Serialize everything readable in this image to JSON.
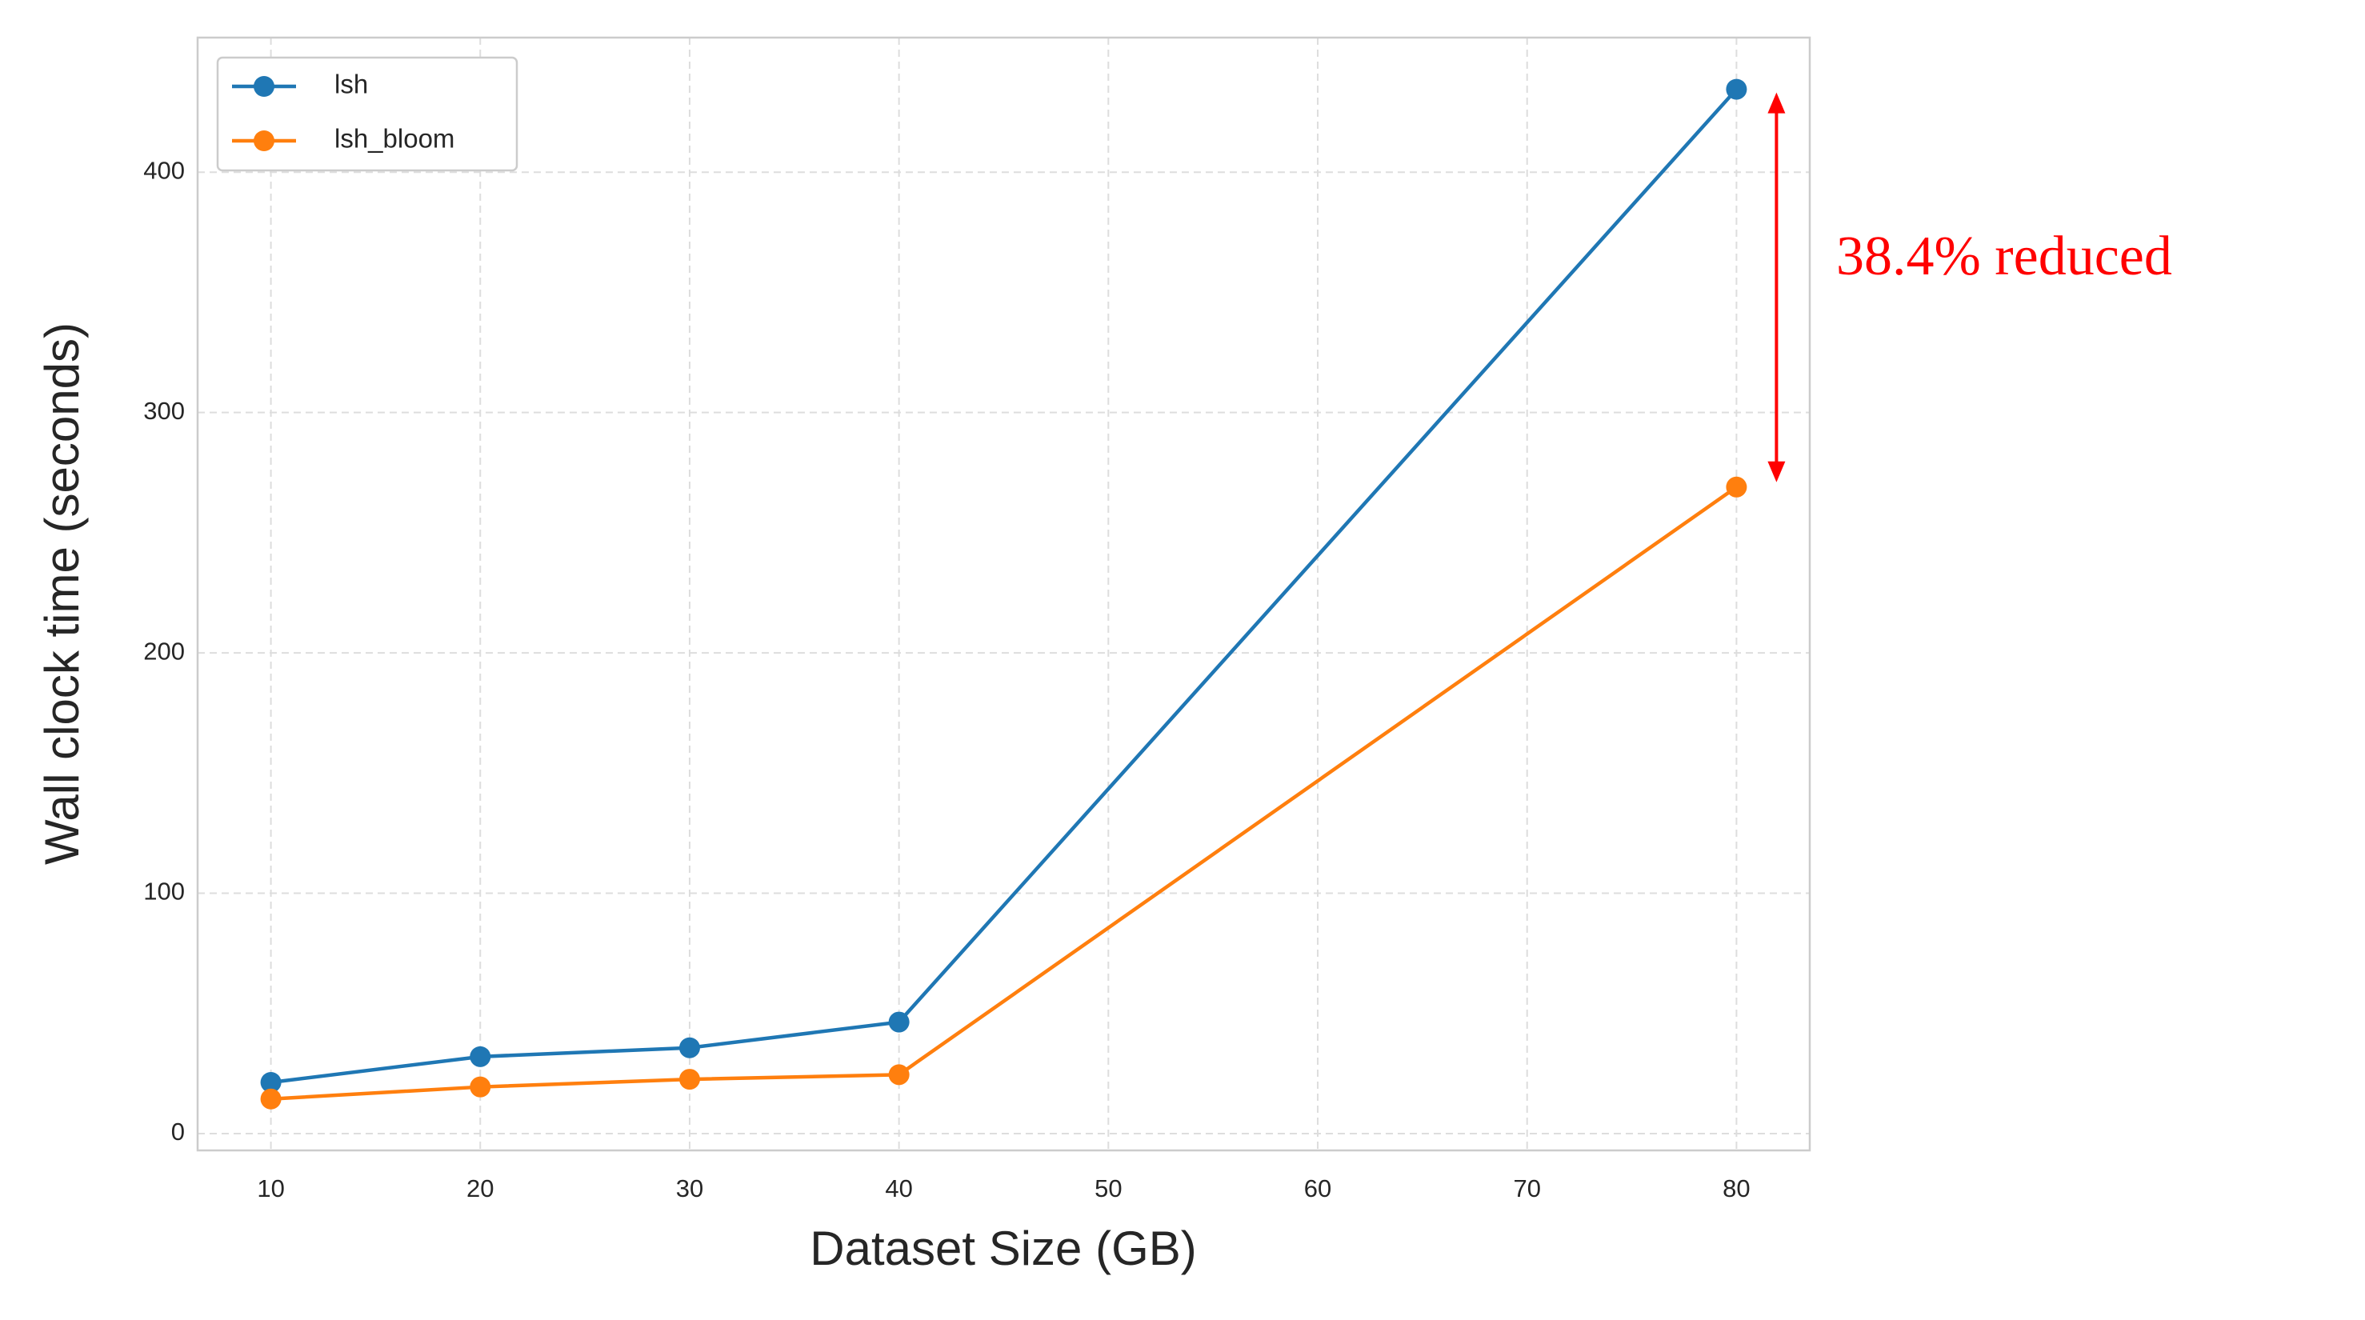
{
  "chart_data": {
    "type": "line",
    "x": [
      10,
      20,
      30,
      40,
      80
    ],
    "series": [
      {
        "name": "lsh",
        "color": "#1f77b4",
        "values": [
          21.3,
          32,
          35.7,
          46.4,
          434.5
        ]
      },
      {
        "name": "lsh_bloom",
        "color": "#ff7f0e",
        "values": [
          14.4,
          19.4,
          22.6,
          24.5,
          269
        ]
      }
    ],
    "xlabel": "Dataset Size (GB)",
    "ylabel": "Wall clock time (seconds)",
    "xlim": [
      6.5,
      83.5
    ],
    "ylim": [
      -7,
      456
    ],
    "xticks": [
      10,
      20,
      30,
      40,
      50,
      60,
      70,
      80
    ],
    "yticks": [
      0,
      100,
      200,
      300,
      400
    ],
    "grid": true,
    "legend": "upper left",
    "annotation": {
      "text": "38.4% reduced",
      "color": "#ff0000"
    }
  }
}
